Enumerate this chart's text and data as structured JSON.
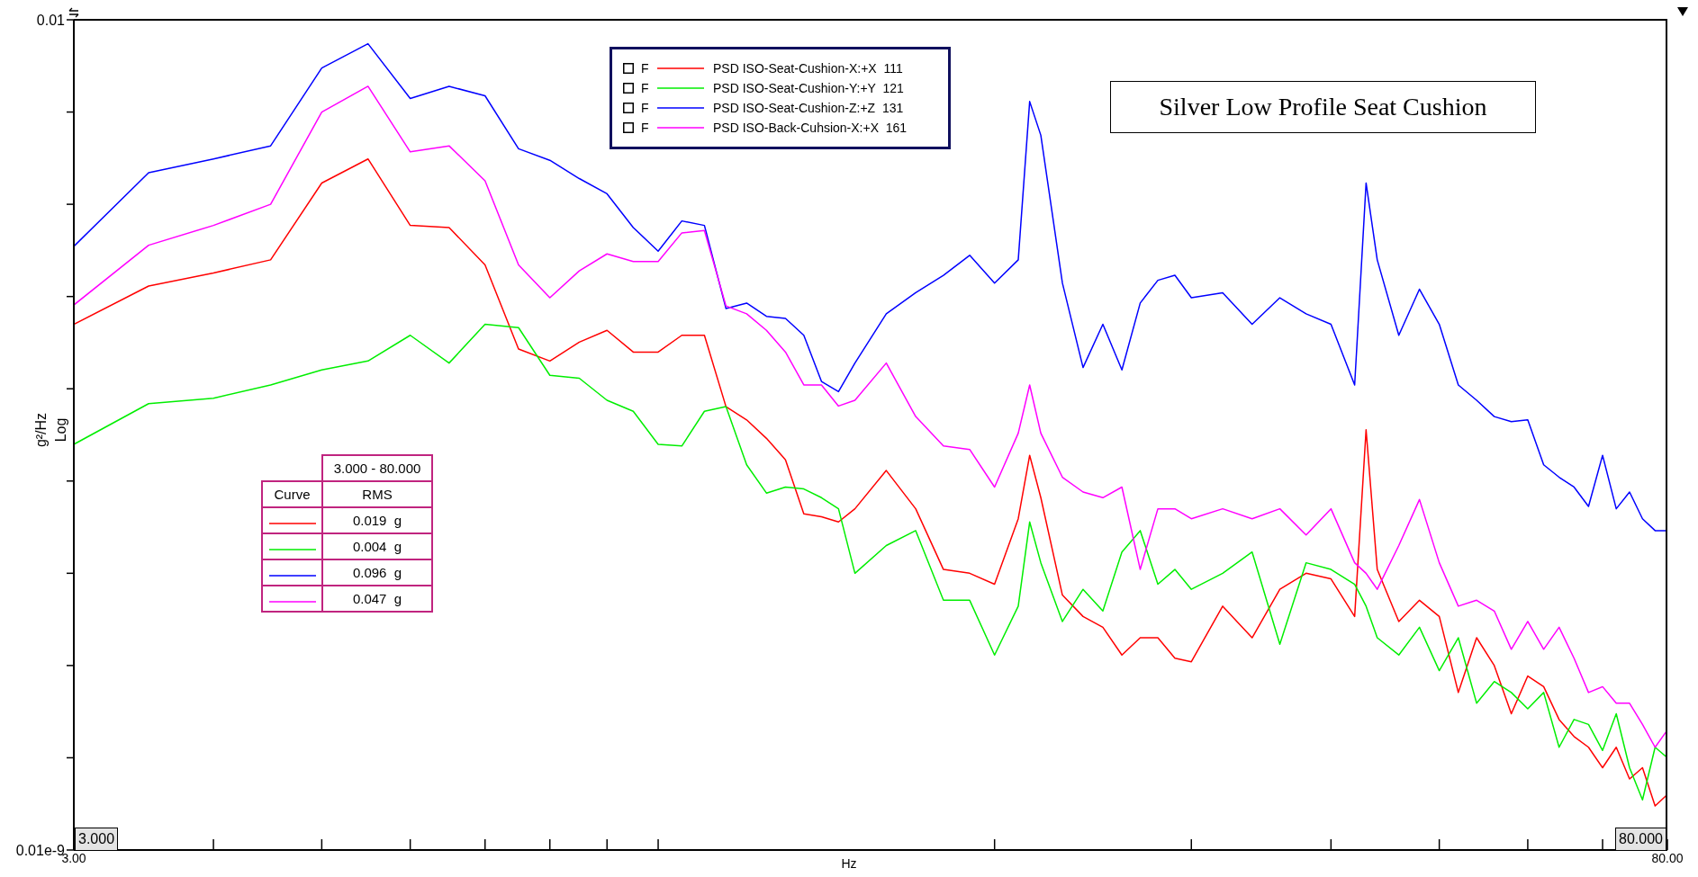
{
  "chart_data": {
    "type": "line",
    "title": "Silver Low Profile Seat Cushion",
    "xlabel": "Hz",
    "ylabel": "g²/Hz",
    "log": "xy",
    "legend": "top",
    "x": [
      3,
      3.5,
      4,
      4.5,
      5,
      5.5,
      6,
      6.5,
      7,
      7.5,
      8,
      8.5,
      9,
      9.5,
      10,
      10.5,
      11,
      11.5,
      12,
      12.5,
      13,
      13.5,
      14,
      14.5,
      15,
      16,
      17,
      18,
      19,
      20,
      21,
      21.5,
      22,
      23,
      24,
      25,
      26,
      27,
      28,
      29,
      30,
      32,
      34,
      36,
      38,
      40,
      42,
      43,
      44,
      46,
      48,
      50,
      52,
      54,
      56,
      58,
      60,
      62,
      64,
      66,
      68,
      70,
      72,
      74,
      76,
      78,
      80
    ],
    "xlim": [
      3,
      80
    ],
    "xticks": [
      {
        "value": 3,
        "label": "3.00"
      },
      {
        "value": 4,
        "label": null
      },
      {
        "value": 5,
        "label": null
      },
      {
        "value": 6,
        "label": null
      },
      {
        "value": 7,
        "label": null
      },
      {
        "value": 8,
        "label": null
      },
      {
        "value": 9,
        "label": null
      },
      {
        "value": 10,
        "label": null
      },
      {
        "value": 20,
        "label": null
      },
      {
        "value": 30,
        "label": null
      },
      {
        "value": 40,
        "label": null
      },
      {
        "value": 50,
        "label": null
      },
      {
        "value": 60,
        "label": null
      },
      {
        "value": 70,
        "label": null
      },
      {
        "value": 80,
        "label": "80.00"
      }
    ],
    "ylim": [
      1e-11,
      0.01
    ],
    "yticks": [
      {
        "value": 1e-11,
        "label": "0.01e-9"
      },
      {
        "value": 1e-10,
        "label": null
      },
      {
        "value": 1e-09,
        "label": null
      },
      {
        "value": 1e-08,
        "label": null
      },
      {
        "value": 1e-07,
        "label": null
      },
      {
        "value": 1e-06,
        "label": null
      },
      {
        "value": 1e-05,
        "label": null
      },
      {
        "value": 0.0001,
        "label": null
      },
      {
        "value": 0.001,
        "label": null
      },
      {
        "value": 0.01,
        "label": "0.01"
      }
    ],
    "series": [
      {
        "name": "PSD ISO-Seat-Cushion-X:+X  111",
        "color": "#ff0000",
        "values": [
          5e-06,
          1.3e-05,
          1.8e-05,
          2.5e-05,
          0.00017,
          0.00031,
          5.9e-05,
          5.6e-05,
          2.2e-05,
          2.7e-06,
          2e-06,
          3.2e-06,
          4.3e-06,
          2.5e-06,
          2.5e-06,
          3.8e-06,
          3.8e-06,
          6.4e-07,
          4.6e-07,
          2.9e-07,
          1.7e-07,
          4.4e-08,
          4.1e-08,
          3.6e-08,
          5e-08,
          1.3e-07,
          5e-08,
          1.1e-08,
          1e-08,
          7.6e-09,
          3.9e-08,
          1.9e-07,
          6.6e-08,
          5.8e-09,
          3.4e-09,
          2.6e-09,
          1.3e-09,
          2e-09,
          2e-09,
          1.2e-09,
          1.1e-09,
          4.4e-09,
          2e-09,
          6.7e-09,
          1e-08,
          8.7e-09,
          3.4e-09,
          3.6e-07,
          1.1e-08,
          3e-09,
          5.1e-09,
          3.4e-09,
          5.1e-10,
          2e-09,
          1e-09,
          3e-10,
          7.7e-10,
          5.9e-10,
          2.6e-10,
          1.7e-10,
          1.3e-10,
          7.8e-11,
          1.3e-10,
          5.9e-11,
          7.8e-11,
          3e-11,
          4e-11
        ]
      },
      {
        "name": "PSD ISO-Seat-Cushion-Y:+Y  121",
        "color": "#00ee00",
        "values": [
          2.5e-07,
          6.9e-07,
          7.9e-07,
          1.1e-06,
          1.6e-06,
          2e-06,
          3.8e-06,
          1.9e-06,
          5e-06,
          4.6e-06,
          1.4e-06,
          1.3e-06,
          7.5e-07,
          5.7e-07,
          2.5e-07,
          2.4e-07,
          5.7e-07,
          6.4e-07,
          1.5e-07,
          7.4e-08,
          8.6e-08,
          8.2e-08,
          6.6e-08,
          5e-08,
          1e-08,
          2e-08,
          2.9e-08,
          5.1e-09,
          5.1e-09,
          1.3e-09,
          4.4e-09,
          3.6e-08,
          1.3e-08,
          3e-09,
          6.7e-09,
          3.9e-09,
          1.7e-08,
          2.9e-08,
          7.6e-09,
          1.1e-08,
          6.7e-09,
          1e-08,
          1.7e-08,
          1.7e-09,
          1.3e-08,
          1.1e-08,
          7.6e-09,
          4.4e-09,
          2e-09,
          1.3e-09,
          2.6e-09,
          8.8e-10,
          2e-09,
          3.9e-10,
          6.7e-10,
          5.1e-10,
          3.4e-10,
          5.1e-10,
          1.3e-10,
          2.6e-10,
          2.3e-10,
          1.2e-10,
          3e-10,
          7.8e-11,
          3.5e-11,
          1.3e-10,
          1e-10
        ]
      },
      {
        "name": "PSD ISO-Seat-Cushion-Z:+Z  131",
        "color": "#0000ff",
        "values": [
          3.5e-05,
          0.00022,
          0.00031,
          0.00043,
          0.003,
          0.0055,
          0.0014,
          0.0019,
          0.0015,
          0.0004,
          0.0003,
          0.00019,
          0.00013,
          5.6e-05,
          3.1e-05,
          6.6e-05,
          5.9e-05,
          7.4e-06,
          8.5e-06,
          6.1e-06,
          5.8e-06,
          3.8e-06,
          1.2e-06,
          9.3e-07,
          1.9e-06,
          6.5e-06,
          1.1e-05,
          1.7e-05,
          2.8e-05,
          1.4e-05,
          2.5e-05,
          0.0013,
          0.00056,
          1.4e-05,
          1.7e-06,
          5e-06,
          1.6e-06,
          8.5e-06,
          1.5e-05,
          1.7e-05,
          9.7e-06,
          1.1e-05,
          5e-06,
          9.7e-06,
          6.5e-06,
          5e-06,
          1.1e-06,
          0.00017,
          2.5e-05,
          3.8e-06,
          1.2e-05,
          5e-06,
          1.1e-06,
          7.5e-07,
          5e-07,
          4.4e-07,
          4.6e-07,
          1.5e-07,
          1.1e-07,
          8.6e-08,
          5.3e-08,
          1.9e-07,
          5e-08,
          7.6e-08,
          3.9e-08,
          2.9e-08,
          2.9e-08
        ]
      },
      {
        "name": "PSD ISO-Back-Cuhsion-X:+X  161",
        "color": "#ff00ff",
        "values": [
          8.1e-06,
          3.6e-05,
          5.9e-05,
          0.0001,
          0.001,
          0.0019,
          0.00037,
          0.00043,
          0.00018,
          2.2e-05,
          9.7e-06,
          1.9e-05,
          2.9e-05,
          2.4e-05,
          2.4e-05,
          4.9e-05,
          5.2e-05,
          7.9e-06,
          6.5e-06,
          4.3e-06,
          2.5e-06,
          1.1e-06,
          1.1e-06,
          6.5e-07,
          7.5e-07,
          1.9e-06,
          5e-07,
          2.4e-07,
          2.2e-07,
          8.6e-08,
          3.3e-07,
          1.1e-06,
          3.3e-07,
          1.1e-07,
          7.6e-08,
          6.6e-08,
          8.6e-08,
          1.1e-08,
          5e-08,
          5e-08,
          3.9e-08,
          5e-08,
          3.9e-08,
          5e-08,
          2.6e-08,
          5e-08,
          1.3e-08,
          1e-08,
          6.7e-09,
          2e-08,
          6.3e-08,
          1.3e-08,
          4.4e-09,
          5.1e-09,
          3.9e-09,
          1.5e-09,
          3e-09,
          1.5e-09,
          2.6e-09,
          1.2e-09,
          5.1e-10,
          5.9e-10,
          3.9e-10,
          3.9e-10,
          2.3e-10,
          1.3e-10,
          2e-10
        ]
      }
    ],
    "annotations": [
      "Log",
      "3.000",
      "80.000",
      "3.000 - 80.000",
      "Curve",
      "RMS",
      "0.019  g",
      "0.004  g",
      "0.096  g",
      "0.047  g",
      "F",
      "F",
      "F",
      "F"
    ]
  }
}
